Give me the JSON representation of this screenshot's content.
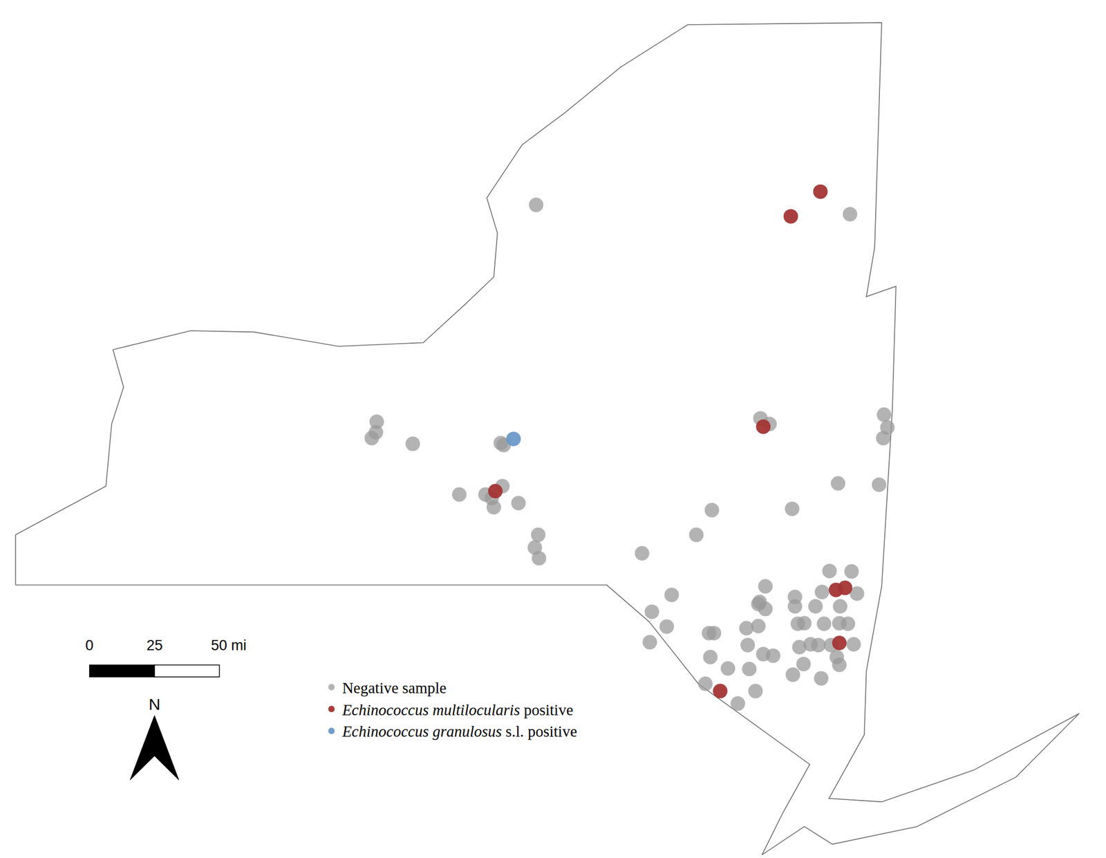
{
  "chart_data": {
    "type": "scatter",
    "xlim": [
      -6,
      420
    ],
    "ylim": [
      -105,
      225
    ],
    "tick_labels": false,
    "grid": false,
    "legend": "lower center",
    "outline": {
      "x": [
        0,
        0,
        34.8,
        37.0,
        41.6,
        37.5,
        67.4,
        91.8,
        124.4,
        157.0,
        173.3,
        184.2,
        185.6,
        181.5,
        195.1,
        211.4,
        233.1,
        258.9,
        333.6,
        332.3,
        330.9,
        327.7,
        339.1,
        337.7,
        333.6,
        327.7,
        326.9,
        313.3,
        333.6,
        369.0,
        409.7,
        385.3,
        347.2,
        314.6,
        303.8,
        287.5,
        295.6,
        305.9,
        263.0,
        244.0,
        227.7,
        0
      ],
      "y": [
        0,
        19.3,
        38.0,
        61.9,
        76.1,
        90.5,
        97.8,
        97.3,
        91.8,
        93.2,
        108.1,
        118.5,
        135.3,
        148.9,
        169.3,
        181.5,
        199.2,
        215.5,
        216.3,
        173.3,
        129.9,
        110.9,
        114.9,
        67.4,
        -0.5,
        -33.1,
        -57.6,
        -82.1,
        -83.4,
        -71.2,
        -49.4,
        -73.9,
        -92.9,
        -99.7,
        -92.9,
        -103.8,
        -87.5,
        -69.0,
        -38.0,
        -14.1,
        0,
        0
      ]
    },
    "series": [
      {
        "name": "Negative sample",
        "color": "#999999",
        "marker": "circle",
        "x": [
          200.5,
          321.4,
          139.1,
          137.2,
          138.8,
          153.0,
          188.0,
          186.9,
          170.9,
          181.0,
          183.4,
          187.5,
          184.2,
          193.7,
          201.3,
          200.0,
          201.6,
          286.9,
          290.4,
          334.5,
          335.8,
          334.2,
          316.8,
          332.6,
          299.1,
          268.2,
          262.2,
          241.3,
          252.7,
          245.1,
          250.8,
          244.3,
          288.8,
          286.6,
          288.8,
          286.1,
          300.2,
          300.2,
          313.5,
          322.0,
          310.6,
          324.1,
          308.1,
          317.6,
          301.3,
          303.8,
          311.4,
          317.3,
          320.6,
          281.5,
          286.1,
          267.1,
          269.0,
          301.9,
          306.2,
          309.2,
          314.1,
          322.8,
          282.0,
          288.0,
          291.8,
          267.6,
          316.3,
          317.3,
          303.5,
          299.4,
          310.3,
          274.4,
          282.6,
          265.7,
          285.0,
          278.2
        ],
        "y": [
          146.2,
          142.6,
          62.8,
          56.5,
          58.7,
          54.3,
          53.8,
          54.6,
          34.8,
          34.8,
          33.4,
          38.0,
          29.9,
          31.5,
          19.3,
          14.4,
          10.3,
          64.1,
          61.9,
          65.5,
          60.6,
          56.5,
          39.1,
          38.6,
          29.3,
          28.8,
          19.3,
          12.2,
          -3.8,
          -10.3,
          -16.0,
          -22.0,
          -0.5,
          -6.5,
          -9.2,
          -7.3,
          -4.6,
          -8.2,
          5.4,
          5.2,
          -2.7,
          -3.3,
          -8.2,
          -8.2,
          -14.9,
          -14.7,
          -14.9,
          -14.7,
          -14.9,
          -16.6,
          -15.8,
          -18.5,
          -18.5,
          -23.9,
          -22.8,
          -23.1,
          -23.1,
          -22.8,
          -23.1,
          -26.6,
          -27.2,
          -27.7,
          -27.7,
          -30.7,
          -30.4,
          -34.5,
          -35.9,
          -32.1,
          -32.3,
          -38.0,
          -40.8,
          -45.6
        ]
      },
      {
        "name": "Echinococcus multilocularis positive",
        "color": "#a33434",
        "marker": "circle",
        "x": [
          310.0,
          298.6,
          288.0,
          184.8,
          316.0,
          319.5,
          317.3,
          271.4
        ],
        "y": [
          151.3,
          141.8,
          60.9,
          36.1,
          -1.9,
          -1.1,
          -22.3,
          -40.8
        ]
      },
      {
        "name": "Echinococcus granulosus s.l. positive",
        "color": "#6b98c8",
        "marker": "circle",
        "x": [
          191.8
        ],
        "y": [
          56.2
        ]
      }
    ],
    "scale_bar": {
      "ticks": [
        0,
        25,
        {
          "value": 50,
          "label": "50 mi"
        }
      ]
    },
    "north_label": "N"
  }
}
